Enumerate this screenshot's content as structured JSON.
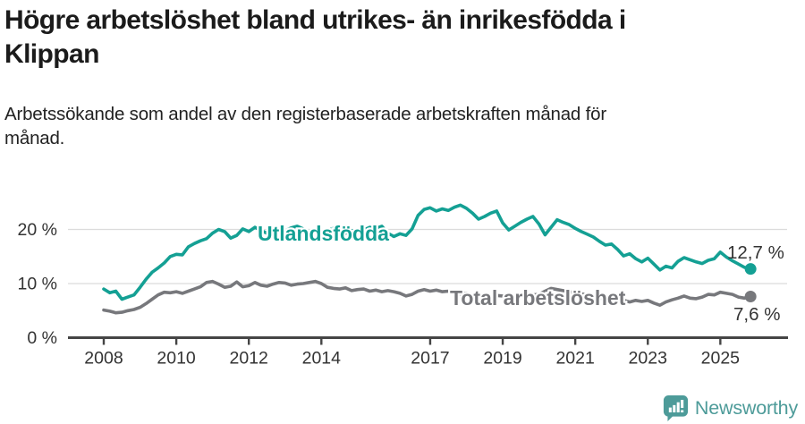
{
  "header": {
    "title": "Högre arbetslöshet bland utrikes- än inrikesfödda i\nKlippan",
    "subtitle": "Arbetssökande som andel av den registerbaserade arbetskraften månad för\nmånad."
  },
  "chart_data": {
    "type": "line",
    "title": "Högre arbetslöshet bland utrikes- än inrikesfödda i Klippan",
    "unit": "%",
    "x_start_year": 2008.0,
    "months_per_step": 2,
    "x_range": [
      2008.0,
      2025.83
    ],
    "ylim": [
      0,
      26
    ],
    "grid": "horizontal",
    "legend_position": "inline-labels",
    "x_tick_years": [
      2008,
      2010,
      2012,
      2014,
      2017,
      2019,
      2021,
      2023,
      2025
    ],
    "y_ticks": [
      {
        "v": 0,
        "label": "0 %"
      },
      {
        "v": 10,
        "label": "10 %"
      },
      {
        "v": 20,
        "label": "20 %"
      }
    ],
    "series": [
      {
        "name": "Utlandsfödda",
        "color": "#14a094",
        "end_label": "12,7 %",
        "values": [
          9.0,
          8.3,
          8.6,
          7.1,
          7.5,
          7.9,
          9.3,
          10.8,
          12.1,
          12.9,
          13.8,
          15.0,
          15.4,
          15.3,
          16.8,
          17.4,
          17.9,
          18.3,
          19.3,
          20.0,
          19.6,
          18.4,
          18.9,
          20.1,
          19.6,
          20.4,
          19.8,
          19.3,
          19.9,
          20.2,
          19.7,
          20.3,
          20.6,
          20.1,
          19.6,
          20.0,
          19.4,
          19.8,
          20.2,
          19.7,
          19.3,
          19.8,
          19.5,
          19.9,
          20.4,
          20.2,
          20.6,
          19.3,
          18.7,
          19.2,
          18.9,
          20.1,
          22.6,
          23.7,
          24.0,
          23.4,
          23.8,
          23.5,
          24.1,
          24.5,
          23.9,
          23.0,
          21.9,
          22.4,
          23.0,
          23.4,
          21.2,
          19.9,
          20.6,
          21.3,
          21.9,
          22.4,
          21.0,
          19.0,
          20.4,
          21.8,
          21.3,
          20.9,
          20.2,
          19.6,
          19.1,
          18.6,
          17.8,
          17.1,
          17.3,
          16.3,
          15.1,
          15.5,
          14.6,
          14.0,
          14.7,
          13.6,
          12.5,
          13.2,
          12.9,
          14.1,
          14.8,
          14.4,
          14.0,
          13.7,
          14.3,
          14.6,
          15.8,
          14.9,
          14.2,
          13.6,
          13.0,
          12.7
        ]
      },
      {
        "name": "Total arbetslöshet",
        "color": "#77787c",
        "end_label": "7,6 %",
        "values": [
          5.1,
          4.9,
          4.6,
          4.7,
          5.0,
          5.2,
          5.6,
          6.3,
          7.1,
          7.9,
          8.4,
          8.3,
          8.5,
          8.2,
          8.6,
          9.0,
          9.4,
          10.2,
          10.4,
          9.9,
          9.3,
          9.5,
          10.3,
          9.4,
          9.6,
          10.2,
          9.7,
          9.5,
          9.9,
          10.2,
          10.1,
          9.7,
          9.9,
          10.0,
          10.2,
          10.4,
          10.0,
          9.3,
          9.1,
          9.0,
          9.2,
          8.7,
          8.9,
          9.0,
          8.6,
          8.8,
          8.5,
          8.7,
          8.5,
          8.2,
          7.7,
          8.0,
          8.6,
          8.9,
          8.6,
          8.8,
          8.5,
          8.6,
          8.3,
          8.1,
          8.2,
          7.9,
          7.7,
          7.9,
          7.6,
          7.8,
          7.7,
          7.5,
          7.6,
          7.8,
          7.7,
          7.9,
          8.0,
          8.6,
          9.1,
          8.9,
          8.7,
          8.5,
          8.3,
          8.1,
          7.9,
          7.6,
          7.3,
          7.1,
          7.0,
          6.7,
          6.9,
          6.6,
          6.9,
          6.7,
          6.9,
          6.4,
          6.0,
          6.6,
          7.0,
          7.3,
          7.7,
          7.3,
          7.2,
          7.5,
          8.0,
          7.9,
          8.4,
          8.2,
          8.0,
          7.5,
          7.3,
          7.6
        ]
      }
    ]
  },
  "style": {
    "grid_color": "#dcdcdc",
    "axis_color": "#454545",
    "tick_text_color": "#333333",
    "value_label_color": "#333333"
  },
  "footer": {
    "brand": "Newsworthy",
    "brand_color": "#4d9b99"
  }
}
